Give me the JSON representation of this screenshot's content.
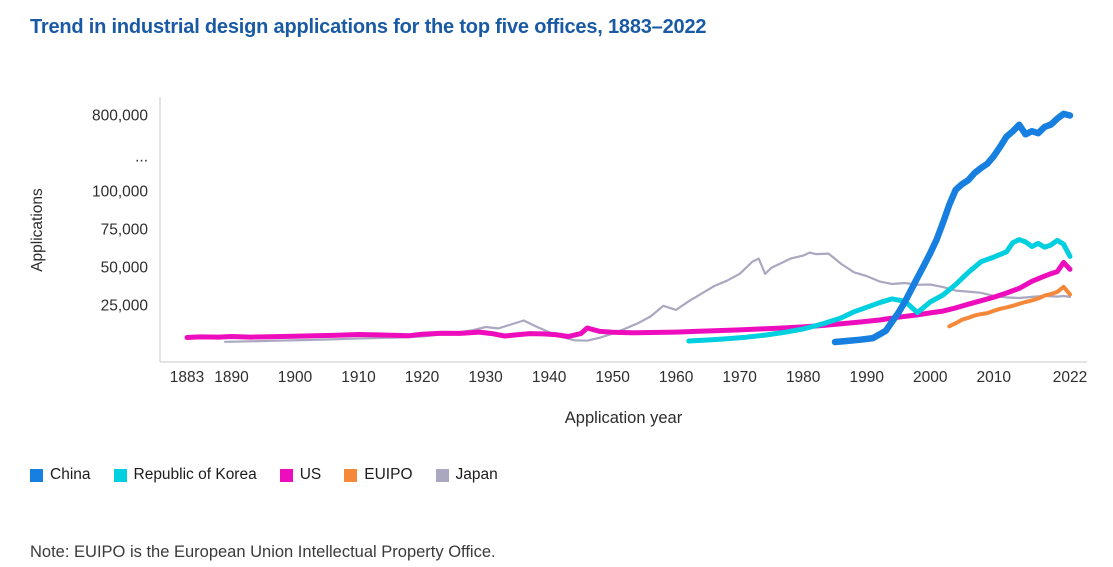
{
  "title": "Trend in industrial design applications for the top five offices, 1883–2022",
  "note": "Note: EUIPO is the European Union Intellectual Property Office.",
  "legend": {
    "items": [
      {
        "label": "China",
        "color": "#177fdf"
      },
      {
        "label": "Republic of Korea",
        "color": "#00cfe0"
      },
      {
        "label": "US",
        "color": "#ee0dbd"
      },
      {
        "label": "EUIPO",
        "color": "#f6883a"
      },
      {
        "label": "Japan",
        "color": "#a9a8c0"
      }
    ]
  },
  "colors": {
    "title_text": "#1a5aa5",
    "axis_line": "#dcdcdc",
    "tick_text": "#2e2e2e",
    "note_text": "#3a3a3a"
  },
  "chart_data": {
    "type": "line",
    "title": "Trend in industrial design applications for the top five offices, 1883–2022",
    "xlabel": "Application year",
    "ylabel": "Applications",
    "x_range": [
      1883,
      2022
    ],
    "x_ticks": [
      1883,
      1890,
      1900,
      1910,
      1920,
      1930,
      1940,
      1950,
      1960,
      1970,
      1980,
      1990,
      2000,
      2010,
      2022
    ],
    "y_ticks": [
      {
        "label": "800,000",
        "value": 800000
      },
      {
        "label": "...",
        "value": null,
        "axis_break": true
      },
      {
        "label": "100,000",
        "value": 100000
      },
      {
        "label": "75,000",
        "value": 75000
      },
      {
        "label": "50,000",
        "value": 50000
      },
      {
        "label": "25,000",
        "value": 25000
      }
    ],
    "y_axis": {
      "break": true,
      "linear_below": 100000,
      "compressed_top": 800000,
      "grid": false,
      "legend_position": "bottom-left"
    },
    "series": [
      {
        "name": "China",
        "color": "#177fdf",
        "width": 6.5,
        "points": [
          [
            1985,
            640
          ],
          [
            1987,
            1400
          ],
          [
            1989,
            2200
          ],
          [
            1991,
            3200
          ],
          [
            1993,
            8000
          ],
          [
            1994,
            14000
          ],
          [
            1995,
            20000
          ],
          [
            1996,
            27000
          ],
          [
            1997,
            35000
          ],
          [
            1998,
            43000
          ],
          [
            1999,
            51000
          ],
          [
            2000,
            59000
          ],
          [
            2001,
            68000
          ],
          [
            2002,
            79000
          ],
          [
            2003,
            91000
          ],
          [
            2004,
            111000
          ],
          [
            2005,
            163000
          ],
          [
            2006,
            201000
          ],
          [
            2007,
            267000
          ],
          [
            2008,
            313000
          ],
          [
            2009,
            351000
          ],
          [
            2010,
            421000
          ],
          [
            2011,
            507000
          ],
          [
            2012,
            601000
          ],
          [
            2013,
            650000
          ],
          [
            2014,
            710000
          ],
          [
            2015,
            622000
          ],
          [
            2016,
            651000
          ],
          [
            2017,
            632000
          ],
          [
            2018,
            690000
          ],
          [
            2019,
            712000
          ],
          [
            2020,
            767000
          ],
          [
            2021,
            810000
          ],
          [
            2022,
            795000
          ]
        ]
      },
      {
        "name": "Republic of Korea",
        "color": "#00cfe0",
        "width": 5,
        "points": [
          [
            1962,
            1300
          ],
          [
            1965,
            2000
          ],
          [
            1968,
            2800
          ],
          [
            1971,
            3800
          ],
          [
            1974,
            5200
          ],
          [
            1977,
            7000
          ],
          [
            1980,
            9300
          ],
          [
            1983,
            12500
          ],
          [
            1986,
            16500
          ],
          [
            1988,
            20500
          ],
          [
            1990,
            23500
          ],
          [
            1992,
            26500
          ],
          [
            1994,
            29000
          ],
          [
            1996,
            27500
          ],
          [
            1998,
            20000
          ],
          [
            2000,
            27000
          ],
          [
            2002,
            31500
          ],
          [
            2004,
            38500
          ],
          [
            2006,
            46500
          ],
          [
            2008,
            53500
          ],
          [
            2010,
            56500
          ],
          [
            2012,
            60000
          ],
          [
            2013,
            66000
          ],
          [
            2014,
            68000
          ],
          [
            2015,
            66500
          ],
          [
            2016,
            63500
          ],
          [
            2017,
            65500
          ],
          [
            2018,
            63000
          ],
          [
            2019,
            64500
          ],
          [
            2020,
            67500
          ],
          [
            2021,
            65000
          ],
          [
            2022,
            57000
          ]
        ]
      },
      {
        "name": "US",
        "color": "#ee0dbd",
        "width": 5,
        "points": [
          [
            1883,
            3600
          ],
          [
            1885,
            4000
          ],
          [
            1888,
            3900
          ],
          [
            1890,
            4300
          ],
          [
            1893,
            3900
          ],
          [
            1896,
            4100
          ],
          [
            1900,
            4400
          ],
          [
            1903,
            4800
          ],
          [
            1906,
            5000
          ],
          [
            1910,
            5600
          ],
          [
            1913,
            5300
          ],
          [
            1916,
            5000
          ],
          [
            1918,
            4800
          ],
          [
            1920,
            5800
          ],
          [
            1923,
            6400
          ],
          [
            1926,
            6300
          ],
          [
            1929,
            7200
          ],
          [
            1931,
            6200
          ],
          [
            1933,
            4600
          ],
          [
            1935,
            5400
          ],
          [
            1937,
            6200
          ],
          [
            1939,
            6000
          ],
          [
            1941,
            5500
          ],
          [
            1943,
            4300
          ],
          [
            1945,
            6200
          ],
          [
            1946,
            9900
          ],
          [
            1948,
            7600
          ],
          [
            1950,
            7100
          ],
          [
            1953,
            6700
          ],
          [
            1956,
            6900
          ],
          [
            1960,
            7200
          ],
          [
            1963,
            7600
          ],
          [
            1966,
            8100
          ],
          [
            1970,
            8600
          ],
          [
            1973,
            9200
          ],
          [
            1976,
            9700
          ],
          [
            1980,
            10600
          ],
          [
            1983,
            11500
          ],
          [
            1986,
            12600
          ],
          [
            1989,
            13800
          ],
          [
            1992,
            15100
          ],
          [
            1995,
            17000
          ],
          [
            1998,
            18500
          ],
          [
            2000,
            19800
          ],
          [
            2002,
            21000
          ],
          [
            2004,
            23100
          ],
          [
            2006,
            25500
          ],
          [
            2008,
            27800
          ],
          [
            2010,
            30100
          ],
          [
            2012,
            32900
          ],
          [
            2014,
            35900
          ],
          [
            2016,
            40600
          ],
          [
            2018,
            44000
          ],
          [
            2019,
            45600
          ],
          [
            2020,
            47000
          ],
          [
            2021,
            53000
          ],
          [
            2022,
            48500
          ]
        ]
      },
      {
        "name": "EUIPO",
        "color": "#f6883a",
        "width": 4,
        "points": [
          [
            2003,
            11000
          ],
          [
            2004,
            13000
          ],
          [
            2005,
            15300
          ],
          [
            2006,
            16600
          ],
          [
            2007,
            18100
          ],
          [
            2008,
            19000
          ],
          [
            2009,
            19700
          ],
          [
            2010,
            21200
          ],
          [
            2011,
            22500
          ],
          [
            2012,
            23400
          ],
          [
            2013,
            24500
          ],
          [
            2014,
            25800
          ],
          [
            2015,
            27000
          ],
          [
            2016,
            28000
          ],
          [
            2017,
            29300
          ],
          [
            2018,
            31200
          ],
          [
            2019,
            32200
          ],
          [
            2020,
            33600
          ],
          [
            2021,
            37000
          ],
          [
            2022,
            32000
          ]
        ]
      },
      {
        "name": "Japan",
        "color": "#a9a8c0",
        "width": 2.2,
        "points": [
          [
            1889,
            800
          ],
          [
            1893,
            1100
          ],
          [
            1897,
            1500
          ],
          [
            1901,
            1900
          ],
          [
            1905,
            2300
          ],
          [
            1909,
            2800
          ],
          [
            1913,
            3300
          ],
          [
            1917,
            3700
          ],
          [
            1920,
            4300
          ],
          [
            1922,
            5100
          ],
          [
            1924,
            6200
          ],
          [
            1926,
            7200
          ],
          [
            1928,
            8400
          ],
          [
            1930,
            10500
          ],
          [
            1932,
            9600
          ],
          [
            1934,
            12200
          ],
          [
            1936,
            14800
          ],
          [
            1938,
            10800
          ],
          [
            1940,
            7200
          ],
          [
            1942,
            4000
          ],
          [
            1944,
            1800
          ],
          [
            1946,
            1500
          ],
          [
            1948,
            3500
          ],
          [
            1950,
            6200
          ],
          [
            1952,
            9500
          ],
          [
            1954,
            13000
          ],
          [
            1956,
            17500
          ],
          [
            1958,
            24500
          ],
          [
            1960,
            21800
          ],
          [
            1962,
            27500
          ],
          [
            1964,
            32500
          ],
          [
            1966,
            37500
          ],
          [
            1968,
            41000
          ],
          [
            1970,
            45500
          ],
          [
            1972,
            53500
          ],
          [
            1973,
            55500
          ],
          [
            1974,
            45500
          ],
          [
            1975,
            49500
          ],
          [
            1976,
            51500
          ],
          [
            1978,
            55500
          ],
          [
            1980,
            57500
          ],
          [
            1981,
            59500
          ],
          [
            1982,
            58500
          ],
          [
            1984,
            58800
          ],
          [
            1986,
            52000
          ],
          [
            1988,
            46500
          ],
          [
            1990,
            44000
          ],
          [
            1992,
            40500
          ],
          [
            1994,
            38800
          ],
          [
            1996,
            39500
          ],
          [
            1998,
            38300
          ],
          [
            2000,
            38500
          ],
          [
            2002,
            36800
          ],
          [
            2004,
            34500
          ],
          [
            2006,
            33800
          ],
          [
            2008,
            33000
          ],
          [
            2010,
            31000
          ],
          [
            2012,
            30000
          ],
          [
            2014,
            29600
          ],
          [
            2016,
            30300
          ],
          [
            2018,
            31000
          ],
          [
            2020,
            30500
          ],
          [
            2021,
            30900
          ],
          [
            2022,
            30300
          ]
        ]
      }
    ]
  }
}
